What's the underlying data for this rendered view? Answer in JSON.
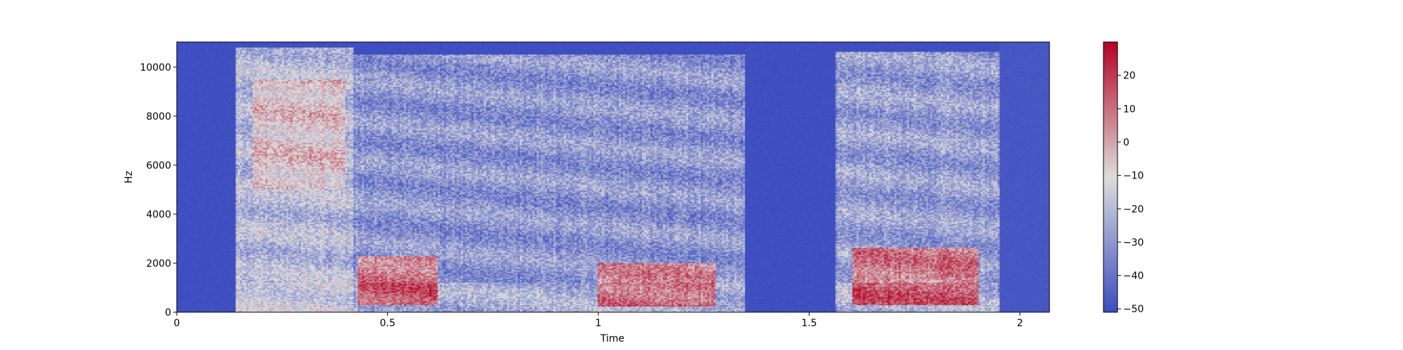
{
  "chart_data": {
    "type": "heatmap",
    "subtype": "spectrogram",
    "title": "",
    "xlabel": "Time",
    "ylabel": "Hz",
    "xlim": [
      0,
      2.07
    ],
    "ylim": [
      0,
      11025
    ],
    "x_ticks": [
      0,
      0.5,
      1,
      1.5,
      2
    ],
    "x_tick_labels": [
      "0",
      "0.5",
      "1",
      "1.5",
      "2"
    ],
    "y_ticks": [
      0,
      2000,
      4000,
      6000,
      8000,
      10000
    ],
    "y_tick_labels": [
      "0",
      "2000",
      "4000",
      "6000",
      "8000",
      "10000"
    ],
    "colormap": "coolwarm",
    "colors": {
      "low": "#3b4cc0",
      "mid": "#dddddd",
      "high": "#b40426"
    },
    "colorbar": {
      "range": [
        -51,
        30
      ],
      "ticks": [
        20,
        10,
        0,
        -10,
        -20,
        -30,
        -40,
        -50
      ],
      "tick_labels": [
        "20",
        "10",
        "0",
        "−10",
        "−20",
        "−30",
        "−40",
        "−50"
      ]
    },
    "regions": [
      {
        "t": [
          0.0,
          0.14
        ],
        "f": [
          0,
          11025
        ],
        "level_db": -50
      },
      {
        "t": [
          0.14,
          0.42
        ],
        "f": [
          0,
          10800
        ],
        "level_db": -20
      },
      {
        "t": [
          0.18,
          0.4
        ],
        "f": [
          5000,
          9500
        ],
        "level_db": -5
      },
      {
        "t": [
          0.42,
          1.35
        ],
        "f": [
          0,
          10500
        ],
        "level_db": -30
      },
      {
        "t": [
          0.43,
          0.62
        ],
        "f": [
          300,
          2300
        ],
        "level_db": 8
      },
      {
        "t": [
          1.0,
          1.28
        ],
        "f": [
          200,
          2000
        ],
        "level_db": 5
      },
      {
        "t": [
          1.35,
          1.56
        ],
        "f": [
          0,
          11025
        ],
        "level_db": -50
      },
      {
        "t": [
          1.56,
          1.95
        ],
        "f": [
          0,
          10600
        ],
        "level_db": -28
      },
      {
        "t": [
          1.6,
          1.9
        ],
        "f": [
          300,
          2600
        ],
        "level_db": 8
      },
      {
        "t": [
          1.95,
          2.07
        ],
        "f": [
          0,
          11025
        ],
        "level_db": -48
      }
    ]
  }
}
